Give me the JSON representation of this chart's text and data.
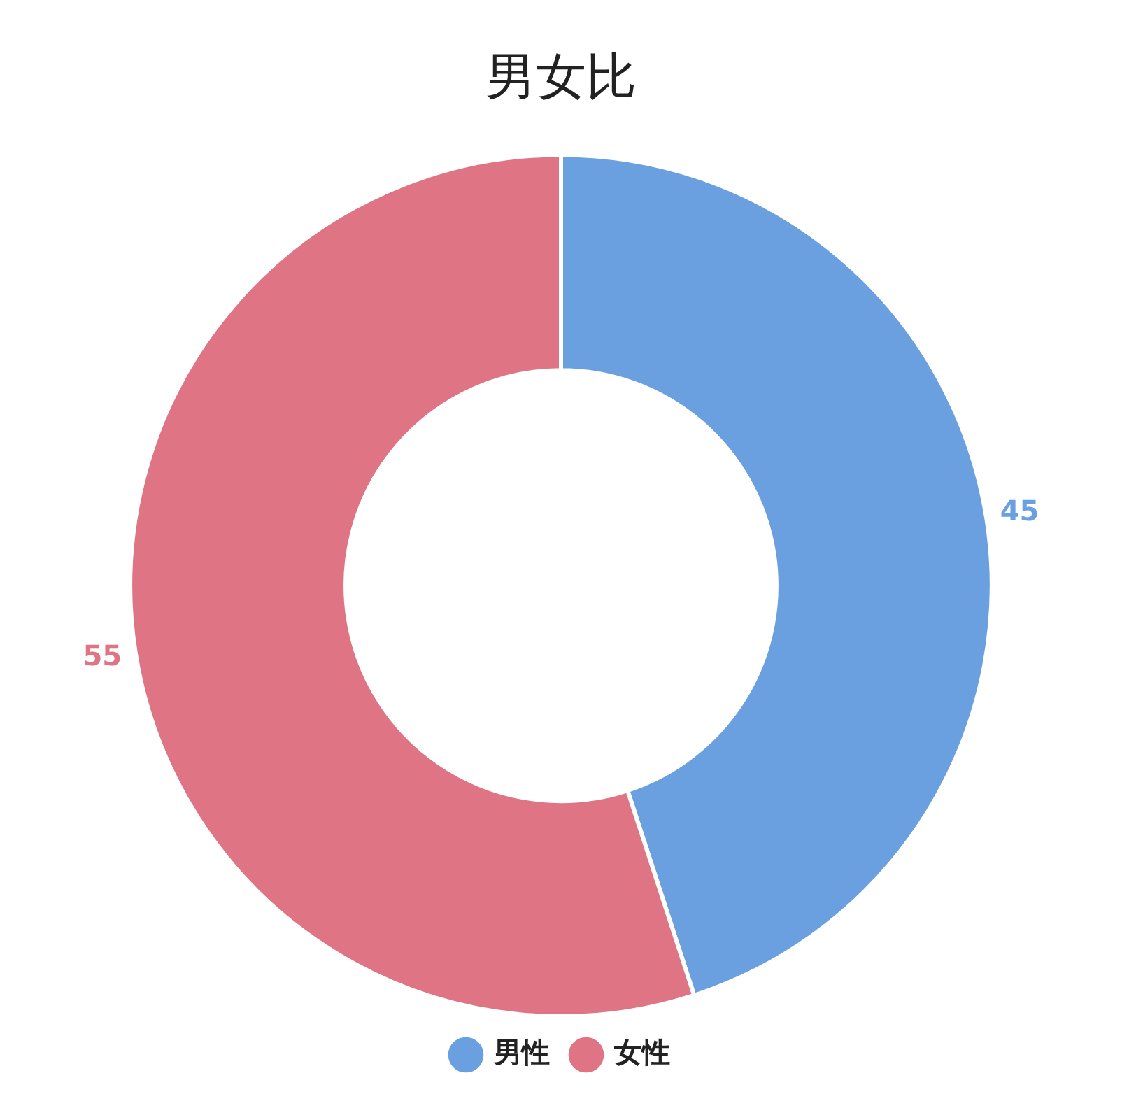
{
  "chart_data": {
    "type": "donut",
    "title": "男女比",
    "categories": [
      "男性",
      "女性"
    ],
    "values": [
      45,
      55
    ],
    "colors": [
      "#6a9fe0",
      "#df7484"
    ],
    "data_labels": true,
    "legend": "bottom"
  }
}
